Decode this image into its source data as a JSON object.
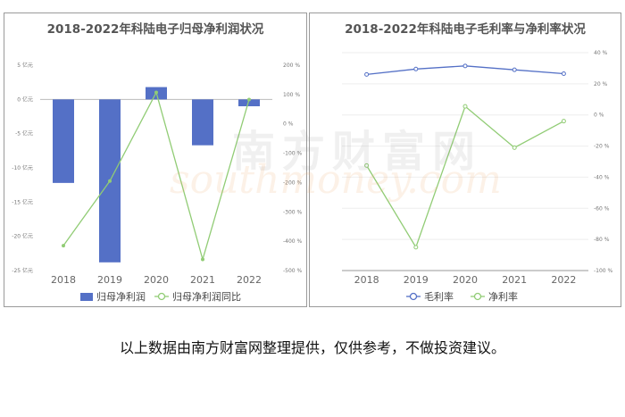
{
  "chart_data": [
    {
      "type": "bar",
      "title": "2018-2022年科陆电子归母净利润状况",
      "categories": [
        "2018",
        "2019",
        "2020",
        "2021",
        "2022"
      ],
      "series": [
        {
          "name": "归母净利润",
          "type": "bar",
          "axis": "left",
          "color": "#5470c6",
          "values": [
            -12.2,
            -23.8,
            1.8,
            -6.7,
            -1.0
          ]
        },
        {
          "name": "归母净利润同比",
          "type": "line",
          "axis": "right",
          "color": "#91cc75",
          "values": [
            -415,
            -195,
            107,
            -462,
            83
          ]
        }
      ],
      "left_axis": {
        "ylim": [
          -25,
          5
        ],
        "ticks": [
          "5 亿元",
          "0 亿元",
          "-5 亿元",
          "-10 亿元",
          "-15 亿元",
          "-20 亿元",
          "-25 亿元"
        ]
      },
      "right_axis": {
        "ylim": [
          -500,
          200
        ],
        "ticks": [
          "200 %",
          "100 %",
          "0 %",
          "-100 %",
          "-200 %",
          "-300 %",
          "-400 %",
          "-500 %"
        ]
      },
      "legend": "bottom"
    },
    {
      "type": "line",
      "title": "2018-2022年科陆电子毛利率与净利率状况",
      "categories": [
        "2018",
        "2019",
        "2020",
        "2021",
        "2022"
      ],
      "series": [
        {
          "name": "毛利率",
          "color": "#5470c6",
          "values": [
            26.0,
            29.5,
            31.5,
            29.0,
            26.5
          ]
        },
        {
          "name": "净利率",
          "color": "#91cc75",
          "values": [
            -32.5,
            -85.0,
            5.5,
            -21.0,
            -4.0
          ]
        }
      ],
      "right_axis": {
        "ylim": [
          -100,
          40
        ],
        "ticks": [
          "40 %",
          "20 %",
          "0 %",
          "-20 %",
          "-40 %",
          "-60 %",
          "-80 %",
          "-100 %"
        ]
      },
      "legend": "bottom"
    }
  ],
  "watermark": {
    "cn": "南方财富网",
    "en": "southmoney.com"
  },
  "footer": "以上数据由南方财富网整理提供，仅供参考，不做投资建议。"
}
